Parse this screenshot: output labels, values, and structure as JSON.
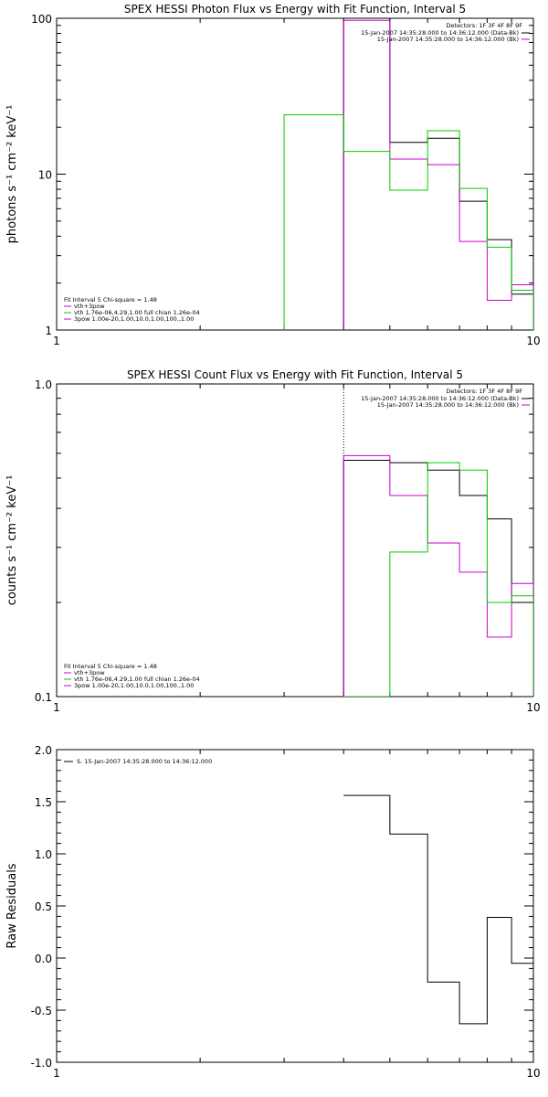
{
  "colors": {
    "black": "#000000",
    "magenta": "#cc00cc",
    "green": "#00cc00",
    "dotted": "#000000"
  },
  "chart_data": [
    {
      "type": "line",
      "style": "step",
      "title": "SPEX HESSI Photon Flux vs Energy with Fit Function, Interval 5",
      "ylabel": "photons s⁻¹ cm⁻² keV⁻¹",
      "xscale": "log",
      "yscale": "log",
      "xlim": [
        1,
        10
      ],
      "ylim": [
        1,
        100
      ],
      "xticks": [
        "1",
        "10"
      ],
      "yticks": [
        "1",
        "10",
        "100"
      ],
      "detectors_text": "Detectors: 1F 3F 4F 8F 9F",
      "legend_top": [
        {
          "text": "15-Jan-2007 14:35:28.000 to 14:36:12.000 (Data-Bk)",
          "color": "#000000"
        },
        {
          "text": "15-Jan-2007 14:35:28.000 to 14:36:12.000 (Bk)",
          "color": "#cc00cc"
        }
      ],
      "legend_bottom": [
        {
          "text": "Fit Interval 5   Chi-square = 1.48",
          "color": null
        },
        {
          "text": "vth+3pow",
          "color": "#cc00cc"
        },
        {
          "text": "vth 1.76e-06,4.29,1.00  full chian 1.26e-04",
          "color": "#00cc00"
        },
        {
          "text": "3pow 1.00e-20,1.00,10.0,1.00,100.,1.00",
          "color": "#cc00cc"
        }
      ],
      "marker_x": 4,
      "series": [
        {
          "color": "#000000",
          "edges": [
            4,
            5,
            6,
            7,
            8,
            9,
            10
          ],
          "values": [
            100,
            16,
            17,
            6.7,
            3.8,
            1.7
          ]
        },
        {
          "color": "#cc00cc",
          "edges": [
            4,
            5,
            6,
            7,
            8,
            9,
            10
          ],
          "values": [
            97,
            12.5,
            11.5,
            3.7,
            1.55,
            1.95
          ]
        },
        {
          "color": "#00cc00",
          "edges": [
            3,
            4,
            5,
            6,
            7,
            8,
            9,
            10
          ],
          "values": [
            24,
            14,
            7.9,
            19,
            8.1,
            3.4,
            1.8
          ]
        }
      ]
    },
    {
      "type": "line",
      "style": "step",
      "title": "SPEX HESSI Count Flux vs Energy with Fit Function, Interval 5",
      "ylabel": "counts s⁻¹ cm⁻² keV⁻¹",
      "xscale": "log",
      "yscale": "log",
      "xlim": [
        1,
        10
      ],
      "ylim": [
        0.1,
        1.0
      ],
      "xticks": [
        "1",
        "10"
      ],
      "yticks": [
        "0.1",
        "1.0"
      ],
      "detectors_text": "Detectors: 1F 3F 4F 8F 9F",
      "legend_top": [
        {
          "text": "15-Jan-2007 14:35:28.000 to 14:36:12.000 (Data-Bk)",
          "color": "#000000"
        },
        {
          "text": "15-Jan-2007 14:35:28.000 to 14:36:12.000 (Bk)",
          "color": "#cc00cc"
        }
      ],
      "legend_bottom": [
        {
          "text": "Fit Interval 5   Chi-square = 1.48",
          "color": null
        },
        {
          "text": "vth+3pow",
          "color": "#cc00cc"
        },
        {
          "text": "vth 1.76e-06,4.29,1.00  full chian 1.26e-04",
          "color": "#00cc00"
        },
        {
          "text": "3pow 1.00e-20,1.00,10.0,1.00,100.,1.00",
          "color": "#cc00cc"
        }
      ],
      "marker_x": 4,
      "series": [
        {
          "color": "#000000",
          "edges": [
            4,
            5,
            6,
            7,
            8,
            9,
            10
          ],
          "values": [
            0.57,
            0.56,
            0.53,
            0.44,
            0.37,
            0.2
          ]
        },
        {
          "color": "#cc00cc",
          "edges": [
            4,
            5,
            6,
            7,
            8,
            9,
            10
          ],
          "values": [
            0.59,
            0.44,
            0.31,
            0.25,
            0.155,
            0.23
          ]
        },
        {
          "color": "#00cc00",
          "edges": [
            4,
            5,
            6,
            7,
            8,
            9,
            10
          ],
          "values": [
            0.09,
            0.29,
            0.56,
            0.53,
            0.2,
            0.21
          ]
        }
      ]
    },
    {
      "type": "line",
      "style": "step",
      "title": "",
      "ylabel": "Raw Residuals",
      "xscale": "log",
      "yscale": "linear",
      "xlim": [
        1,
        10
      ],
      "ylim": [
        -1.0,
        2.0
      ],
      "xticks": [
        "1",
        "10"
      ],
      "yticks": [
        "-1.0",
        "-0.5",
        "0.0",
        "0.5",
        "1.0",
        "1.5",
        "2.0"
      ],
      "legend_top": [
        {
          "text": "S. 15-Jan-2007 14:35:28.000 to 14:36:12.000",
          "color": "#000000"
        }
      ],
      "series": [
        {
          "color": "#000000",
          "edges": [
            4,
            5,
            6,
            7,
            8,
            9,
            10
          ],
          "values": [
            1.56,
            1.19,
            -0.23,
            -0.63,
            0.39,
            -0.05
          ]
        }
      ]
    }
  ]
}
